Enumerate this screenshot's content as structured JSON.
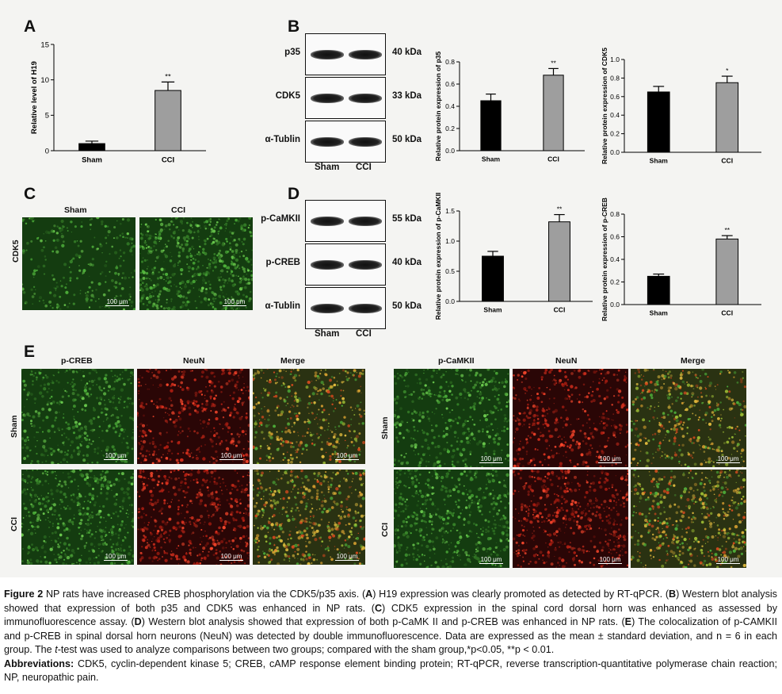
{
  "panels": {
    "A": {
      "letter": "A",
      "chart_data": {
        "type": "bar",
        "categories": [
          "Sham",
          "CCI"
        ],
        "values": [
          1.0,
          8.5
        ],
        "errors": [
          0.35,
          1.2
        ],
        "significance": [
          "",
          "**"
        ],
        "ylabel": "Relative level of H19",
        "ylim": [
          0,
          15
        ],
        "yticks": [
          "0",
          "5",
          "10",
          "15"
        ],
        "colors": [
          "#000000",
          "#9e9e9e"
        ]
      }
    },
    "B": {
      "letter": "B",
      "blot": {
        "proteins": [
          "p35",
          "CDK5",
          "α-Tublin"
        ],
        "sizes": [
          "40 kDa",
          "33 kDa",
          "50 kDa"
        ],
        "lanes": [
          "Sham",
          "CCI"
        ]
      },
      "chart_p35": {
        "type": "bar",
        "categories": [
          "Sham",
          "CCI"
        ],
        "values": [
          0.45,
          0.68
        ],
        "errors": [
          0.06,
          0.06
        ],
        "significance": [
          "",
          "**"
        ],
        "ylabel": "Relative protein expression of p35",
        "ylim": [
          0,
          0.8
        ],
        "yticks": [
          "0.0",
          "0.2",
          "0.4",
          "0.6",
          "0.8"
        ]
      },
      "chart_cdk5": {
        "type": "bar",
        "categories": [
          "Sham",
          "CCI"
        ],
        "values": [
          0.65,
          0.75
        ],
        "errors": [
          0.06,
          0.07
        ],
        "significance": [
          "",
          "*"
        ],
        "ylabel": "Relative protein expression of CDK5",
        "ylim": [
          0,
          1.0
        ],
        "yticks": [
          "0.0",
          "0.2",
          "0.4",
          "0.6",
          "0.8",
          "1.0"
        ]
      }
    },
    "C": {
      "letter": "C",
      "row_label": "CDK5",
      "columns": [
        "Sham",
        "CCI"
      ],
      "scale": "100 μm"
    },
    "D": {
      "letter": "D",
      "blot": {
        "proteins": [
          "p-CaMKII",
          "p-CREB",
          "α-Tublin"
        ],
        "sizes": [
          "55 kDa",
          "40 kDa",
          "50 kDa"
        ],
        "lanes": [
          "Sham",
          "CCI"
        ]
      },
      "chart_pcamkii": {
        "type": "bar",
        "categories": [
          "Sham",
          "CCI"
        ],
        "values": [
          0.75,
          1.32
        ],
        "errors": [
          0.08,
          0.12
        ],
        "significance": [
          "",
          "**"
        ],
        "ylabel": "Relative protein expression of p-CaMKII",
        "ylim": [
          0,
          1.5
        ],
        "yticks": [
          "0.0",
          "0.5",
          "1.0",
          "1.5"
        ]
      },
      "chart_pcreb": {
        "type": "bar",
        "categories": [
          "Sham",
          "CCI"
        ],
        "values": [
          0.25,
          0.58
        ],
        "errors": [
          0.02,
          0.03
        ],
        "significance": [
          "",
          "**"
        ],
        "ylabel": "Relative protein expression of p-CREB",
        "ylim": [
          0,
          0.8
        ],
        "yticks": [
          "0.0",
          "0.2",
          "0.4",
          "0.6",
          "0.8"
        ]
      }
    },
    "E": {
      "letter": "E",
      "left_columns": [
        "p-CREB",
        "NeuN",
        "Merge"
      ],
      "right_columns": [
        "p-CaMKII",
        "NeuN",
        "Merge"
      ],
      "rows": [
        "Sham",
        "CCI"
      ],
      "scale": "100 μm"
    }
  },
  "caption": {
    "figure_label": "Figure 2",
    "title": " NP rats have increased CREB phosphorylation via the CDK5/p35 axis. (",
    "a": "A",
    "a_text": ") H19 expression was clearly promoted as detected by RT-qPCR. (",
    "b": "B",
    "b_text": ") Western blot analysis showed that expression of both p35 and CDK5 was enhanced in NP rats. (",
    "c": "C",
    "c_text": ") CDK5 expression in the spinal cord dorsal horn was enhanced as assessed by immunofluorescence assay. (",
    "d": "D",
    "d_text": ") Western blot analysis showed that expression of both p-CaMK II and p-CREB was enhanced in NP rats. (",
    "e": "E",
    "e_text": ") The colocalization of p-CAMKII and p-CREB in spinal dorsal horn neurons (NeuN) was detected by double immunofluorescence. Data are expressed as the mean ± standard deviation, and n = 6 in each group. The ",
    "ttest": "t",
    "end_text": "-test was used to analyze comparisons between two groups; compared with the sham group,*p<0.05, **p < 0.01.",
    "abbr_label": "Abbreviations:",
    "abbr_text": " CDK5, cyclin-dependent kinase 5; CREB, cAMP response element binding protein; RT-qPCR, reverse transcription-quantitative polymerase chain reaction; NP, neuropathic pain."
  }
}
